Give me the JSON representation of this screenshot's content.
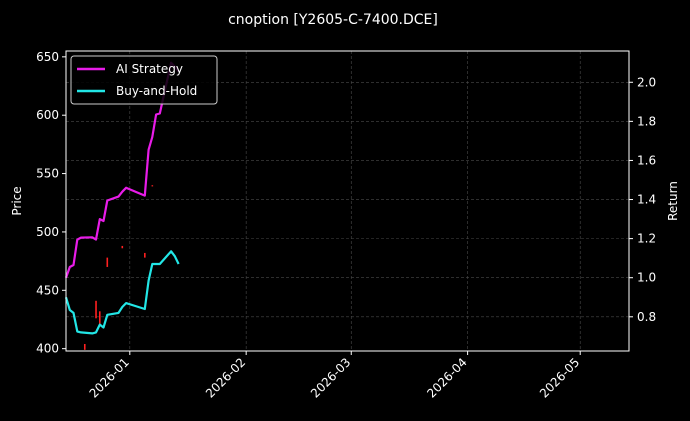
{
  "chart_data": {
    "type": "line",
    "title": "cnoption [Y2605-C-7400.DCE]",
    "xlabel": "",
    "ylabel": "Price",
    "y2label": "Return",
    "xlim": [
      "2025-12-15",
      "2026-05-14"
    ],
    "ylim": [
      398,
      655
    ],
    "y2lim": [
      0.625,
      2.16
    ],
    "x_ticks": [
      "2026-01",
      "2026-02",
      "2026-03",
      "2026-04",
      "2026-05"
    ],
    "y_ticks": [
      400,
      450,
      500,
      550,
      600,
      650
    ],
    "y2_ticks": [
      "0.8",
      "1.0",
      "1.2",
      "1.4",
      "1.6",
      "1.8",
      "2.0"
    ],
    "grid": true,
    "legend_position": "top-left",
    "colors": {
      "background": "#000000",
      "ai_strategy": "#e81ce8",
      "buy_and_hold": "#22e6e6",
      "price_ticks": "#ff2020",
      "grid": "#4a4a4a",
      "axis": "#ffffff"
    },
    "series": [
      {
        "name": "AI Strategy",
        "axis": "right",
        "x": [
          "2025-12-15",
          "2025-12-16",
          "2025-12-17",
          "2025-12-18",
          "2025-12-19",
          "2025-12-22",
          "2025-12-23",
          "2025-12-24",
          "2025-12-25",
          "2025-12-26",
          "2025-12-29",
          "2025-12-30",
          "2025-12-31",
          "2026-01-05",
          "2026-01-06",
          "2026-01-07",
          "2026-01-08",
          "2026-01-09",
          "2026-01-12",
          "2026-01-13",
          "2026-01-14"
        ],
        "values": [
          1.0,
          1.055,
          1.065,
          1.195,
          1.205,
          1.207,
          1.195,
          1.3,
          1.29,
          1.395,
          1.415,
          1.44,
          1.46,
          1.42,
          1.655,
          1.72,
          1.835,
          1.84,
          2.1,
          2.08,
          2.055
        ]
      },
      {
        "name": "Buy-and-Hold",
        "axis": "right",
        "x": [
          "2025-12-15",
          "2025-12-16",
          "2025-12-17",
          "2025-12-18",
          "2025-12-19",
          "2025-12-22",
          "2025-12-23",
          "2025-12-24",
          "2025-12-25",
          "2025-12-26",
          "2025-12-29",
          "2025-12-30",
          "2025-12-31",
          "2026-01-05",
          "2026-01-06",
          "2026-01-07",
          "2026-01-08",
          "2026-01-09",
          "2026-01-12",
          "2026-01-13",
          "2026-01-14"
        ],
        "values": [
          0.9,
          0.835,
          0.82,
          0.725,
          0.72,
          0.715,
          0.72,
          0.76,
          0.745,
          0.81,
          0.82,
          0.85,
          0.87,
          0.84,
          0.985,
          1.07,
          1.07,
          1.07,
          1.135,
          1.11,
          1.07
        ]
      }
    ],
    "price_marks": [
      {
        "x": "2025-12-20",
        "low": 399,
        "high": 404
      },
      {
        "x": "2025-12-23",
        "low": 426,
        "high": 441
      },
      {
        "x": "2025-12-24",
        "low": 419,
        "high": 432
      },
      {
        "x": "2025-12-26",
        "low": 470,
        "high": 478
      },
      {
        "x": "2025-12-30",
        "low": 486,
        "high": 488
      },
      {
        "x": "2026-01-05",
        "low": 478,
        "high": 482
      },
      {
        "x": "2026-01-07",
        "low": 539,
        "high": 540
      }
    ]
  }
}
